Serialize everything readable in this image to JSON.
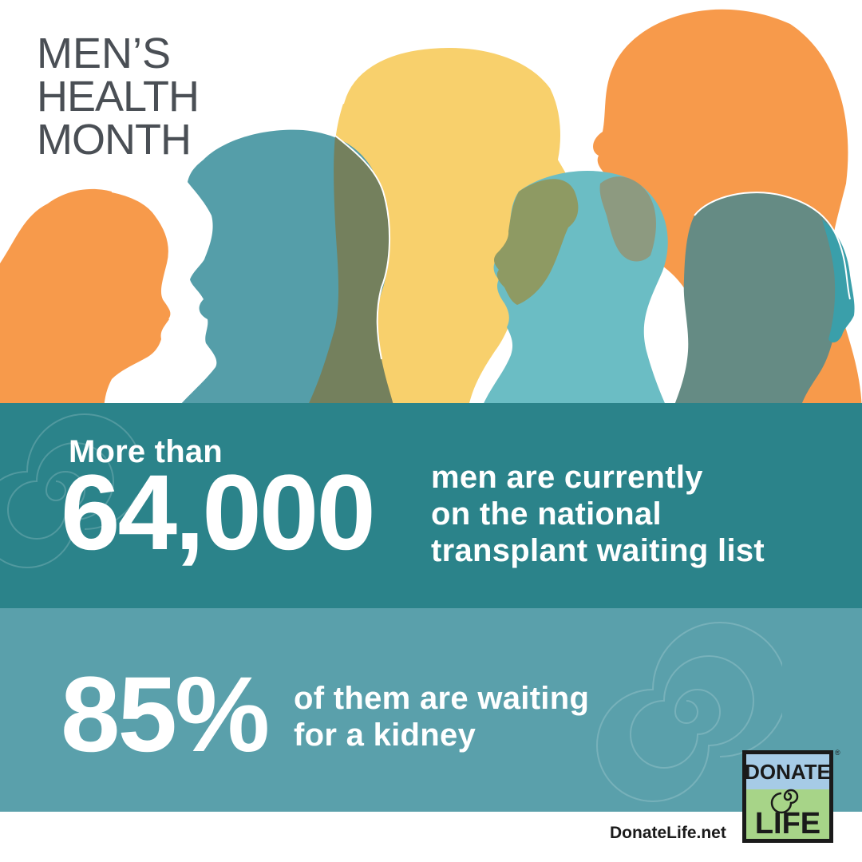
{
  "title": {
    "line1": "MEN’S",
    "line2": "HEALTH",
    "line3": "MONTH"
  },
  "stat_one": {
    "lead": "More than",
    "number": "64,000",
    "description": "men are currently\non the national\ntransplant waiting list"
  },
  "stat_two": {
    "number": "85%",
    "description": "of them are waiting\nfor a kidney"
  },
  "footer": {
    "url": "DonateLife.net"
  },
  "logo": {
    "line1": "DONATE",
    "line2": "LIFE",
    "registered_mark": "®"
  },
  "colors": {
    "orange": "#f79a4b",
    "teal_dark": "#2b838a",
    "teal_light": "#5aa0ab",
    "yellow": "#f8d06c",
    "olive": "#7d8760",
    "aqua": "#6bbdc4",
    "logo_green": "#a7d488",
    "logo_blue": "#a6cbe6",
    "title_gray": "#4a4f55"
  },
  "icons": {
    "swirl": "spiral-icon",
    "silhouettes": "head-silhouettes"
  }
}
